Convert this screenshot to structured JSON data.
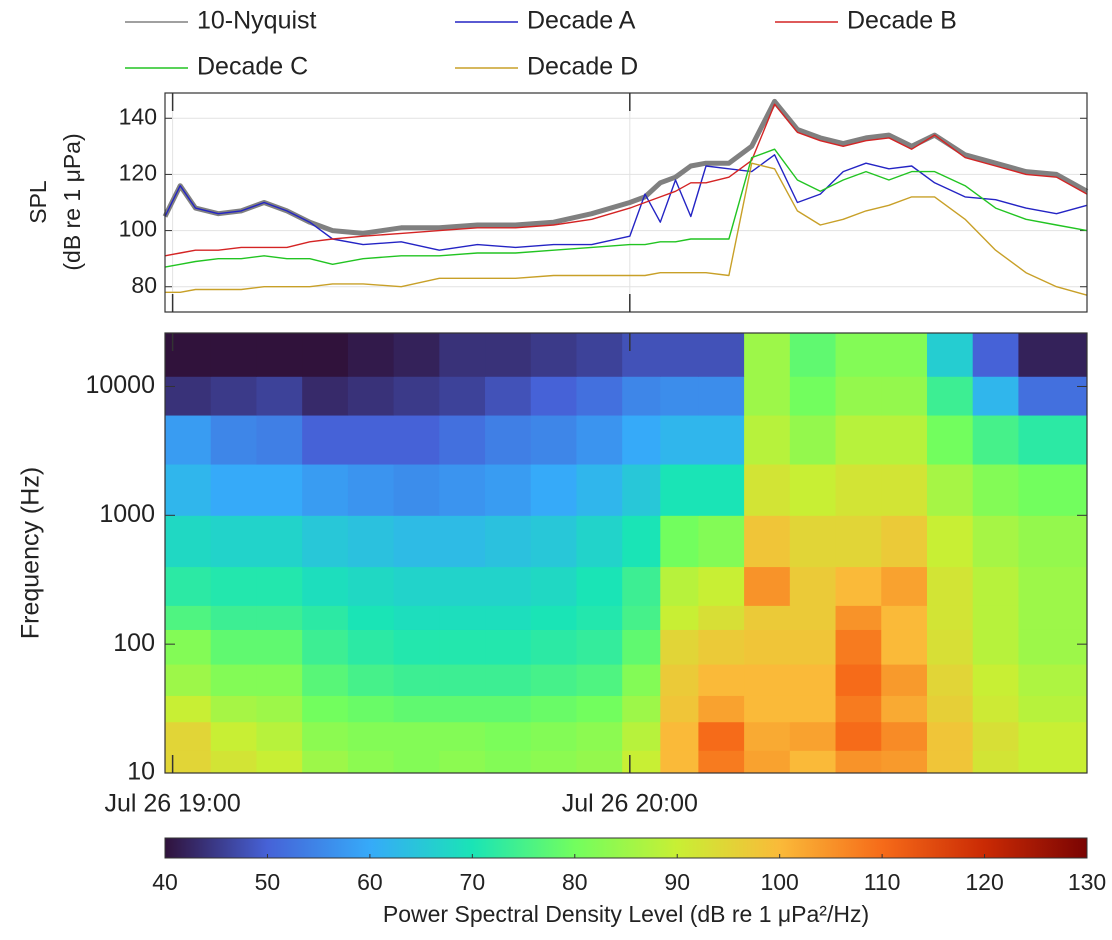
{
  "chart_data": [
    {
      "type": "line",
      "ylabel": [
        "SPL",
        "(dB re 1 μPa)"
      ],
      "xlim": [
        1139,
        1260
      ],
      "ylim": [
        71,
        149
      ],
      "yticks": [
        80,
        100,
        120,
        140
      ],
      "grid": true,
      "legend": "top",
      "x": [
        1139,
        1141,
        1143,
        1146,
        1149,
        1152,
        1155,
        1158,
        1161,
        1165,
        1170,
        1175,
        1180,
        1185,
        1190,
        1195,
        1200,
        1202,
        1204,
        1206,
        1208,
        1210,
        1213,
        1216,
        1219,
        1222,
        1225,
        1228,
        1231,
        1234,
        1237,
        1240,
        1244,
        1248,
        1252,
        1256,
        1260
      ],
      "series": [
        {
          "name": "10-Nyquist",
          "color": "#808080",
          "values": [
            105,
            116,
            108,
            106,
            107,
            110,
            107,
            103,
            100,
            99,
            101,
            101,
            102,
            102,
            103,
            106,
            110,
            112,
            117,
            119,
            123,
            124,
            124,
            130,
            146,
            136,
            133,
            131,
            133,
            134,
            130,
            134,
            127,
            124,
            121,
            120,
            114
          ]
        },
        {
          "name": "Decade A",
          "color": "#2424c4",
          "values": [
            105,
            116,
            108,
            106,
            107,
            110,
            107,
            103,
            97,
            95,
            96,
            93,
            95,
            94,
            95,
            95,
            98,
            113,
            103,
            118,
            105,
            123,
            122,
            121,
            127,
            110,
            113,
            121,
            124,
            122,
            123,
            117,
            112,
            111,
            108,
            106,
            109
          ]
        },
        {
          "name": "Decade B",
          "color": "#d42424",
          "values": [
            91,
            92,
            93,
            93,
            94,
            94,
            94,
            96,
            97,
            98,
            99,
            100,
            101,
            101,
            102,
            104,
            108,
            110,
            112,
            114,
            117,
            117,
            119,
            125,
            145,
            135,
            132,
            130,
            132,
            133,
            129,
            134,
            126,
            123,
            120,
            119,
            113
          ]
        },
        {
          "name": "Decade C",
          "color": "#22c422",
          "values": [
            87,
            88,
            89,
            90,
            90,
            91,
            90,
            90,
            88,
            90,
            91,
            91,
            92,
            92,
            93,
            94,
            95,
            95,
            96,
            96,
            97,
            97,
            97,
            126,
            129,
            118,
            114,
            118,
            121,
            118,
            121,
            121,
            116,
            108,
            104,
            102,
            100
          ]
        },
        {
          "name": "Decade D",
          "color": "#c8a028",
          "values": [
            78,
            78,
            79,
            79,
            79,
            80,
            80,
            80,
            81,
            81,
            80,
            83,
            83,
            83,
            84,
            84,
            84,
            84,
            85,
            85,
            85,
            85,
            84,
            124,
            122,
            107,
            102,
            104,
            107,
            109,
            112,
            112,
            104,
            93,
            85,
            80,
            77
          ]
        }
      ]
    },
    {
      "type": "heatmap",
      "ylabel": "Frequency (Hz)",
      "xlim": [
        1139,
        1260
      ],
      "xticks": [
        {
          "value": 1140,
          "label": "Jul 26 19:00"
        },
        {
          "value": 1200,
          "label": "Jul 26 20:00"
        }
      ],
      "ylim": [
        10,
        26000
      ],
      "yticks": [
        10,
        100,
        1000,
        10000
      ],
      "log_y": true,
      "xbins": [
        1139,
        1145,
        1151,
        1157,
        1163,
        1169,
        1175,
        1181,
        1187,
        1193,
        1199,
        1204,
        1209,
        1215,
        1221,
        1227,
        1233,
        1239,
        1245,
        1251,
        1260
      ],
      "ybins": [
        10,
        15,
        25,
        40,
        70,
        130,
        200,
        400,
        1000,
        2500,
        6000,
        12000,
        26000
      ],
      "z": [
        [
          95,
          92,
          90,
          85,
          83,
          82,
          83,
          82,
          83,
          84,
          90,
          100,
          108,
          103,
          100,
          105,
          104,
          98,
          92,
          90
        ],
        [
          95,
          90,
          88,
          83,
          82,
          82,
          82,
          81,
          82,
          83,
          88,
          100,
          110,
          102,
          103,
          110,
          106,
          98,
          93,
          90
        ],
        [
          90,
          86,
          85,
          80,
          79,
          78,
          78,
          78,
          79,
          80,
          85,
          98,
          103,
          100,
          100,
          108,
          102,
          96,
          91,
          88
        ],
        [
          85,
          82,
          82,
          77,
          75,
          74,
          74,
          74,
          75,
          76,
          82,
          97,
          100,
          100,
          100,
          110,
          104,
          95,
          90,
          87
        ],
        [
          82,
          78,
          78,
          74,
          72,
          71,
          71,
          71,
          72,
          73,
          78,
          95,
          97,
          98,
          98,
          108,
          100,
          93,
          88,
          85
        ],
        [
          76,
          74,
          74,
          72,
          70,
          69,
          69,
          69,
          70,
          71,
          75,
          90,
          93,
          97,
          97,
          105,
          100,
          92,
          88,
          85
        ],
        [
          72,
          71,
          71,
          69,
          68,
          67,
          67,
          67,
          68,
          70,
          74,
          88,
          90,
          105,
          97,
          100,
          103,
          92,
          88,
          85
        ],
        [
          68,
          67,
          67,
          65,
          64,
          63,
          63,
          64,
          65,
          67,
          70,
          80,
          82,
          98,
          95,
          95,
          97,
          90,
          86,
          84
        ],
        [
          62,
          60,
          60,
          58,
          57,
          56,
          57,
          58,
          60,
          62,
          65,
          70,
          70,
          92,
          90,
          92,
          92,
          86,
          82,
          80
        ],
        [
          58,
          55,
          54,
          50,
          50,
          50,
          52,
          54,
          55,
          57,
          60,
          62,
          62,
          88,
          84,
          88,
          88,
          80,
          75,
          72
        ],
        [
          44,
          45,
          46,
          43,
          44,
          45,
          46,
          48,
          50,
          52,
          55,
          56,
          56,
          85,
          80,
          84,
          84,
          74,
          62,
          52
        ],
        [
          40,
          40,
          40,
          40,
          41,
          42,
          44,
          44,
          45,
          46,
          48,
          48,
          48,
          85,
          78,
          82,
          82,
          66,
          50,
          42
        ]
      ],
      "colormap": [
        "#30123b",
        "#4662d7",
        "#36aaf9",
        "#1ae4b6",
        "#72fe5e",
        "#c8ef34",
        "#faba39",
        "#f66b19",
        "#ca2a04",
        "#7a0403"
      ],
      "clim": [
        40,
        130
      ],
      "cticks": [
        40,
        50,
        60,
        70,
        80,
        90,
        100,
        110,
        120,
        130
      ],
      "clabel": "Power Spectral Density Level (dB re 1 μPa²/Hz)"
    }
  ]
}
